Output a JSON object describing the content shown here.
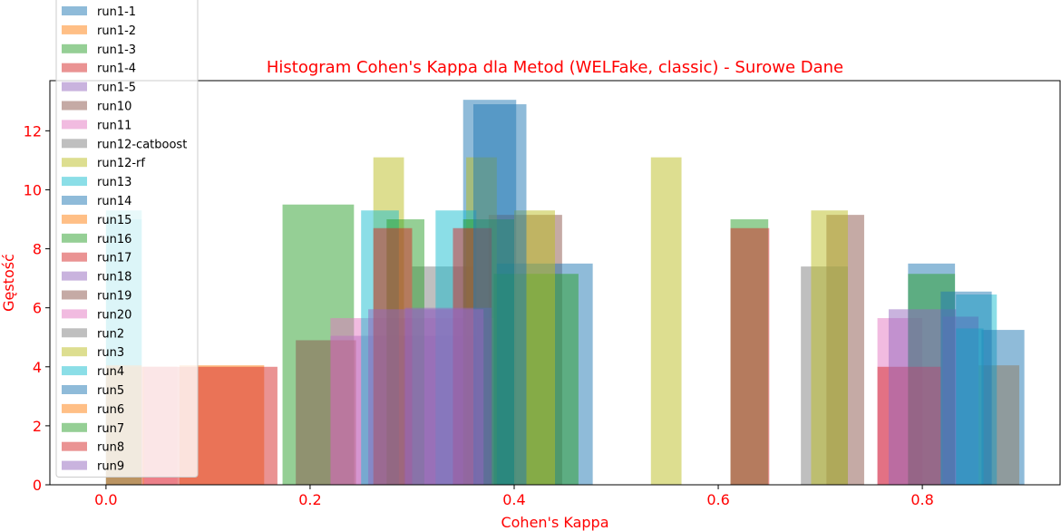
{
  "chart_data": {
    "type": "bar",
    "title": "Histogram Cohen's Kappa dla Metod (WELFake, classic) - Surowe Dane",
    "xlabel": "Cohen's Kappa",
    "ylabel": "Gęstość",
    "xlim": [
      -0.055,
      0.935
    ],
    "ylim": [
      0,
      13.7
    ],
    "xticks": [
      "0.0",
      "0.2",
      "0.4",
      "0.6",
      "0.8"
    ],
    "yticks": [
      "0",
      "2",
      "4",
      "6",
      "8",
      "10",
      "12"
    ],
    "legend_position": "top-left",
    "series": [
      {
        "name": "run1-1",
        "color": "#1f77b4",
        "bars": [
          [
            0.35,
            0.402,
            13.05
          ]
        ]
      },
      {
        "name": "run1-2",
        "color": "#ff7f0e",
        "bars": [
          [
            0.072,
            0.155,
            4.05
          ],
          [
            0.855,
            0.895,
            4.05
          ]
        ]
      },
      {
        "name": "run1-3",
        "color": "#2ca02c",
        "bars": [
          [
            0.173,
            0.243,
            9.5
          ]
        ]
      },
      {
        "name": "run1-4",
        "color": "#d62728",
        "bars": [
          [
            0.036,
            0.168,
            4.0
          ]
        ]
      },
      {
        "name": "run1-5",
        "color": "#9467bd",
        "bars": [
          [
            0.22,
            0.37,
            5.05
          ]
        ]
      },
      {
        "name": "run10",
        "color": "#8c564b",
        "bars": [
          [
            0.186,
            0.245,
            4.9
          ],
          [
            0.375,
            0.447,
            9.15
          ],
          [
            0.706,
            0.743,
            9.15
          ]
        ]
      },
      {
        "name": "run11",
        "color": "#e377c2",
        "bars": [
          [
            0.22,
            0.38,
            5.65
          ],
          [
            0.756,
            0.8,
            5.65
          ]
        ]
      },
      {
        "name": "run12-catboost",
        "color": "#7f7f7f",
        "bars": [
          [
            0.3,
            0.36,
            7.4
          ],
          [
            0.681,
            0.727,
            7.4
          ]
        ]
      },
      {
        "name": "run12-rf",
        "color": "#bcbd22",
        "bars": [
          [
            0.262,
            0.292,
            11.1
          ],
          [
            0.353,
            0.383,
            11.1
          ],
          [
            0.534,
            0.564,
            11.1
          ],
          [
            0.691,
            0.727,
            9.3
          ]
        ]
      },
      {
        "name": "run13",
        "color": "#17becf",
        "bars": [
          [
            0.0,
            0.035,
            9.3
          ],
          [
            0.25,
            0.287,
            9.3
          ],
          [
            0.323,
            0.363,
            9.3
          ],
          [
            0.833,
            0.873,
            6.45
          ]
        ]
      },
      {
        "name": "run14",
        "color": "#1f77b4",
        "bars": [
          [
            0.383,
            0.477,
            7.5
          ],
          [
            0.786,
            0.832,
            7.5
          ],
          [
            0.858,
            0.9,
            5.25
          ]
        ]
      },
      {
        "name": "run15",
        "color": "#ff7f0e",
        "bars": [
          [
            0.0,
            0.07,
            4.0
          ]
        ]
      },
      {
        "name": "run16",
        "color": "#2ca02c",
        "bars": [
          [
            0.275,
            0.312,
            9.0
          ],
          [
            0.35,
            0.4,
            9.0
          ],
          [
            0.38,
            0.463,
            7.15
          ],
          [
            0.612,
            0.649,
            9.0
          ],
          [
            0.786,
            0.832,
            7.15
          ]
        ]
      },
      {
        "name": "run17",
        "color": "#d62728",
        "bars": [
          [
            0.262,
            0.3,
            8.7
          ],
          [
            0.34,
            0.378,
            8.7
          ],
          [
            0.612,
            0.65,
            8.7
          ],
          [
            0.756,
            0.818,
            4.0
          ]
        ]
      },
      {
        "name": "run18",
        "color": "#9467bd",
        "bars": [
          [
            0.293,
            0.378,
            6.0
          ],
          [
            0.767,
            0.833,
            5.95
          ],
          [
            0.82,
            0.855,
            5.7
          ]
        ]
      },
      {
        "name": "run19",
        "color": "#8c564b",
        "bars": []
      },
      {
        "name": "run20",
        "color": "#e377c2",
        "bars": [
          [
            0.0,
            0.036,
            4.0
          ],
          [
            0.037,
            0.07,
            4.0
          ]
        ]
      },
      {
        "name": "run2",
        "color": "#7f7f7f",
        "bars": []
      },
      {
        "name": "run3",
        "color": "#bcbd22",
        "bars": [
          [
            0.4,
            0.44,
            9.3
          ]
        ]
      },
      {
        "name": "run4",
        "color": "#17becf",
        "bars": [
          [
            0.0,
            0.035,
            9.0
          ],
          [
            0.833,
            0.86,
            5.3
          ]
        ]
      },
      {
        "name": "run5",
        "color": "#1f77b4",
        "bars": [
          [
            0.36,
            0.412,
            12.9
          ],
          [
            0.818,
            0.868,
            6.55
          ]
        ]
      },
      {
        "name": "run6",
        "color": "#ff7f0e",
        "bars": [
          [
            0.0,
            0.035,
            4.05
          ]
        ]
      },
      {
        "name": "run7",
        "color": "#2ca02c",
        "bars": []
      },
      {
        "name": "run8",
        "color": "#d62728",
        "bars": []
      },
      {
        "name": "run9",
        "color": "#9467bd",
        "bars": [
          [
            0.257,
            0.37,
            5.95
          ]
        ]
      }
    ]
  }
}
